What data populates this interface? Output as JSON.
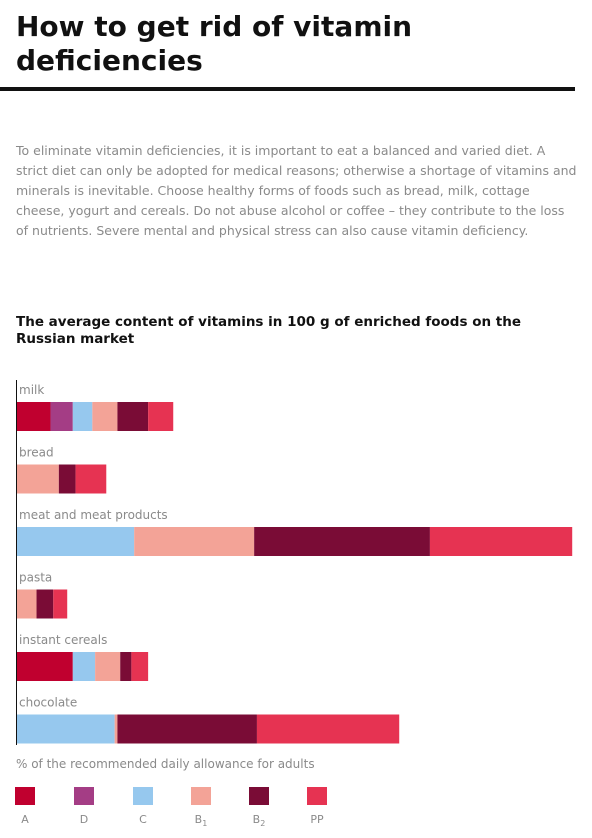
{
  "page": {
    "title": "How to get rid of vitamin deficiencies",
    "intro": "To eliminate vitamin deficiencies, it is important to eat a balanced and varied diet. A strict diet can only be adopted for medical reasons; otherwise a shortage of vitamins and minerals is inevitable. Choose healthy forms of foods such as bread, milk, cottage cheese, yogurt and cereals. Do not abuse alcohol or coffee – they contribute to the loss of nutrients. Severe mental and physical stress can also cause vitamin deficiency."
  },
  "chart_data": {
    "type": "bar",
    "stacked": true,
    "orientation": "horizontal",
    "title": "The average content of vitamins in 100 g of enriched foods on the Russian market",
    "xlabel": "% of the recommended daily allowance for adults",
    "categories": [
      "milk",
      "bread",
      "meat and meat products",
      "pasta",
      "instant cereals",
      "chocolate"
    ],
    "series": [
      {
        "name": "A",
        "base": "A",
        "sub": "",
        "color": "#c0002f",
        "values": [
          6,
          0,
          0,
          0,
          10,
          0
        ]
      },
      {
        "name": "D",
        "base": "D",
        "sub": "",
        "color": "#a43d85",
        "values": [
          4,
          0,
          0,
          0,
          0,
          0
        ]
      },
      {
        "name": "C",
        "base": "C",
        "sub": "",
        "color": "#96c8ee",
        "values": [
          3.5,
          0,
          21,
          0,
          4,
          17.5
        ]
      },
      {
        "name": "B1",
        "base": "B",
        "sub": "1",
        "color": "#f3a397",
        "values": [
          4.5,
          7.5,
          21.5,
          3.5,
          4.5,
          0.5
        ]
      },
      {
        "name": "B2",
        "base": "B",
        "sub": "2",
        "color": "#7a0c36",
        "values": [
          5.5,
          3,
          31.5,
          3,
          2,
          25
        ]
      },
      {
        "name": "PP",
        "base": "PP",
        "sub": "",
        "color": "#e63352",
        "values": [
          4.5,
          5.5,
          25.5,
          2.5,
          3,
          25.5
        ]
      }
    ],
    "xlim": [
      0,
      100
    ],
    "grid": false,
    "legend_position": "bottom"
  }
}
